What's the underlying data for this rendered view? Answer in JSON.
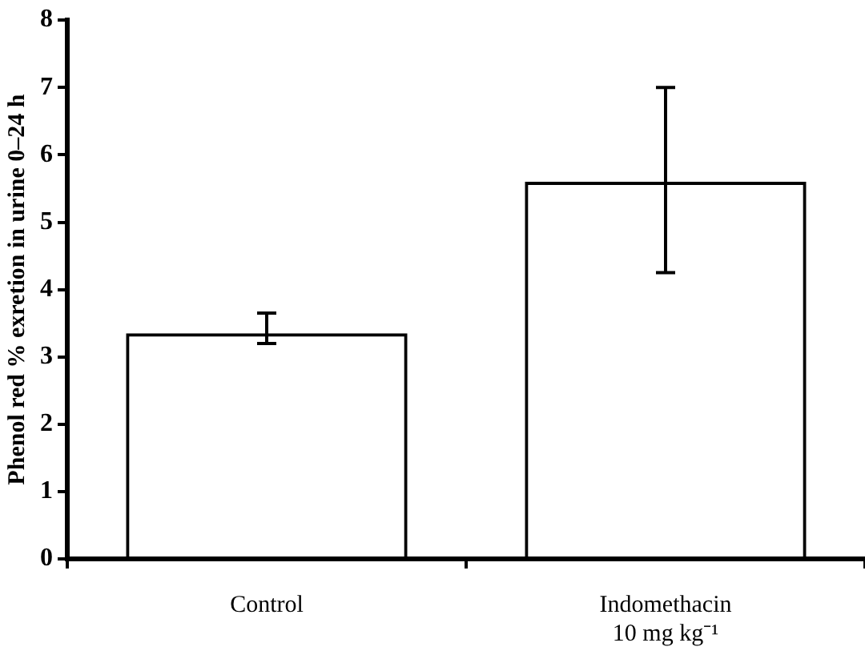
{
  "chart_data": {
    "type": "bar",
    "ylabel": "Phenol red % exretion in urine 0–24 h",
    "categories": [
      "Control",
      "Indomethacin\n10 mg kg⁻¹"
    ],
    "values": [
      3.35,
      5.6
    ],
    "color": "#000000",
    "errors": [
      [
        3.2,
        3.65
      ],
      [
        4.25,
        7.0
      ]
    ],
    "ylim": [
      0,
      8
    ],
    "yticks": [
      0,
      1,
      2,
      3,
      4,
      5,
      6,
      7,
      8
    ],
    "grid": false,
    "legend": false
  }
}
